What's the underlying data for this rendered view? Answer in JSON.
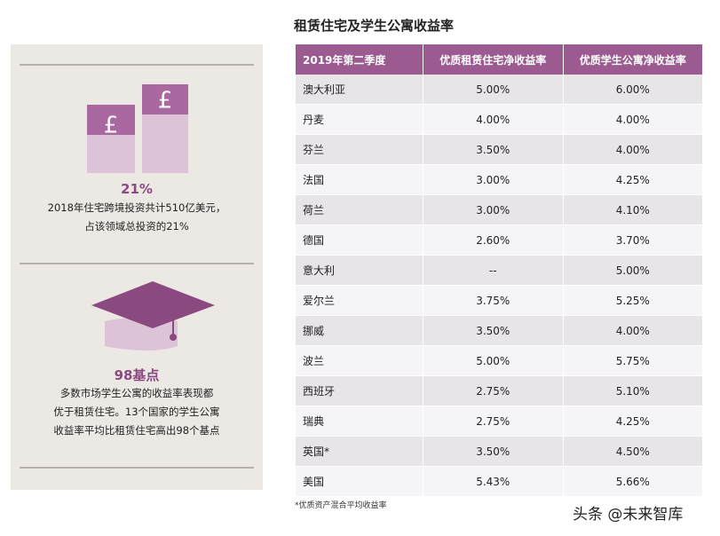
{
  "header": {
    "title": "租赁住宅及学生公寓收益率"
  },
  "table": {
    "columns": [
      "2019年第二季度",
      "优质租赁住宅净收益率",
      "优质学生公寓净收益率"
    ],
    "rows": [
      [
        "澳大利亚",
        "5.00%",
        "6.00%"
      ],
      [
        "丹麦",
        "4.00%",
        "4.00%"
      ],
      [
        "芬兰",
        "3.50%",
        "4.00%"
      ],
      [
        "法国",
        "3.00%",
        "4.25%"
      ],
      [
        "荷兰",
        "3.00%",
        "4.10%"
      ],
      [
        "德国",
        "2.60%",
        "3.70%"
      ],
      [
        "意大利",
        "--",
        "5.00%"
      ],
      [
        "爱尔兰",
        "3.75%",
        "5.25%"
      ],
      [
        "挪威",
        "3.50%",
        "4.00%"
      ],
      [
        "波兰",
        "5.00%",
        "5.75%"
      ],
      [
        "西班牙",
        "2.75%",
        "5.10%"
      ],
      [
        "瑞典",
        "2.75%",
        "4.25%"
      ],
      [
        "英国*",
        "3.50%",
        "4.50%"
      ],
      [
        "美国",
        "5.43%",
        "5.66%"
      ]
    ]
  },
  "footnote": "*优质资产混合平均收益率",
  "panel": {
    "stat1": {
      "value": "21%",
      "lines": [
        "2018年住宅跨境投资共计510亿美元，",
        "占该领域总投资的21%"
      ]
    },
    "stat2": {
      "value": "98基点",
      "lines": [
        "多数市场学生公寓的收益率表现都",
        "优于租赁住宅。13个国家的学生公寓",
        "收益率平均比租赁住宅高出98个基点"
      ]
    }
  },
  "watermark": "头条 @未来智库"
}
